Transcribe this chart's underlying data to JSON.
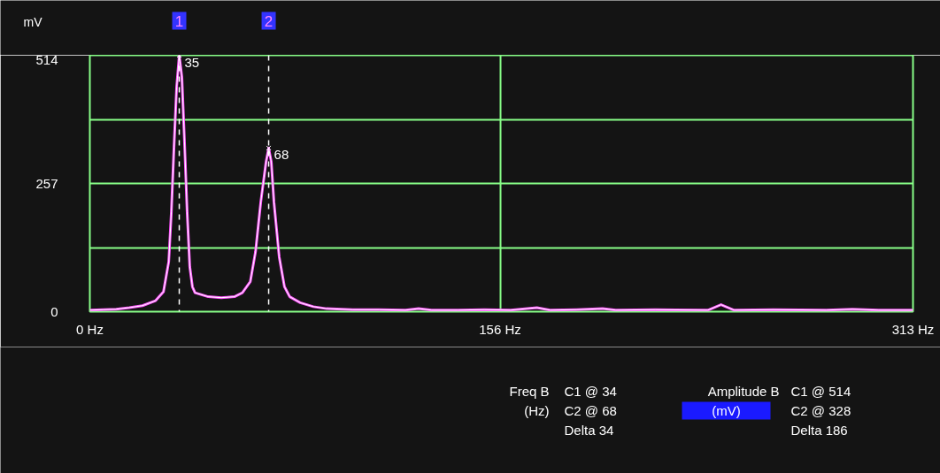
{
  "chart_data": {
    "type": "line",
    "ylabel": "mV",
    "x": [
      0,
      5,
      10,
      15,
      20,
      25,
      28,
      30,
      31,
      32,
      33,
      34,
      35,
      36,
      37,
      38,
      39,
      40,
      45,
      50,
      55,
      58,
      61,
      63,
      65,
      67,
      68,
      69,
      70,
      72,
      74,
      76,
      80,
      85,
      90,
      100,
      110,
      120,
      125,
      130,
      140,
      150,
      160,
      170,
      175,
      185,
      195,
      200,
      215,
      235,
      240,
      245,
      260,
      280,
      290,
      300,
      313
    ],
    "series": [
      {
        "color": "#ff55ff",
        "values": [
          3,
          4,
          5,
          8,
          12,
          22,
          40,
          100,
          200,
          330,
          450,
          514,
          470,
          340,
          200,
          90,
          50,
          38,
          30,
          28,
          30,
          38,
          60,
          120,
          220,
          300,
          328,
          300,
          220,
          110,
          50,
          30,
          18,
          10,
          6,
          4,
          4,
          3,
          6,
          3,
          3,
          4,
          3,
          8,
          3,
          4,
          6,
          3,
          4,
          3,
          14,
          3,
          4,
          3,
          5,
          3,
          3
        ]
      }
    ],
    "xlim": [
      0,
      313
    ],
    "xticks": [
      {
        "value": 0,
        "label": "0 Hz"
      },
      {
        "value": 156,
        "label": "156 Hz"
      },
      {
        "value": 313,
        "label": "313 Hz"
      }
    ],
    "ylim": [
      0,
      514
    ],
    "yticks": [
      0,
      {
        "value": 128.5,
        "label": null
      },
      257,
      {
        "value": 385.5,
        "label": null
      },
      514
    ],
    "grid": true,
    "marker": "none",
    "line_style": "solid",
    "ref_lines": [
      {
        "axis": "x",
        "value": 34,
        "color": "#ffffff",
        "line_style": "dashed"
      },
      {
        "axis": "x",
        "value": 68,
        "color": "#ffffff",
        "line_style": "dashed"
      }
    ],
    "annotations": [
      {
        "text": "35",
        "x": 34,
        "y": 514
      },
      {
        "text": "68",
        "x": 68,
        "y": 328
      },
      "1",
      "2",
      "Freq B",
      "(Hz)",
      "C1 @ 34",
      "C2 @ 68",
      "Delta 34",
      "Amplitude B",
      "(mV)",
      "C1 @ 514",
      "C2 @ 328",
      "Delta 186"
    ]
  }
}
